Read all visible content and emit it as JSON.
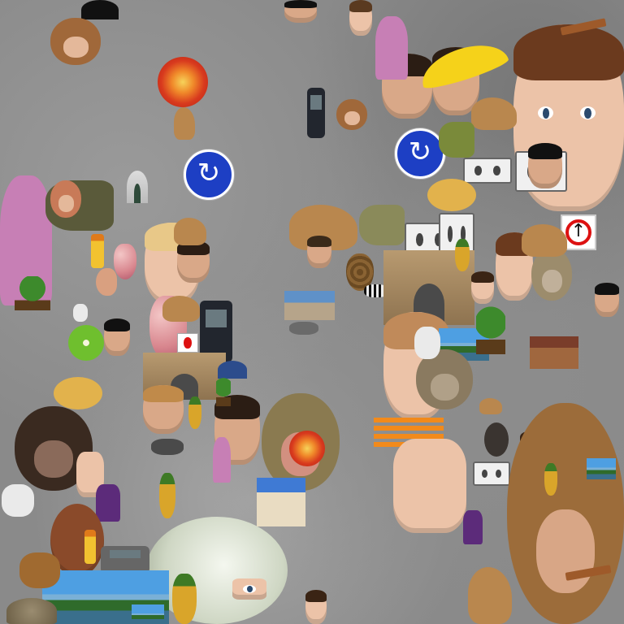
{
  "scene": {
    "description_free": true,
    "background_color": "#8a8a8a",
    "objects": [
      {
        "name": "tomato-slice",
        "kind": "fruit"
      },
      {
        "name": "banana",
        "kind": "fruit"
      },
      {
        "name": "roundabout-sign",
        "kind": "road-sign"
      },
      {
        "name": "no-entry-sign",
        "kind": "road-sign"
      },
      {
        "name": "mobile-phone",
        "kind": "device"
      },
      {
        "name": "cassette-tape",
        "kind": "device"
      },
      {
        "name": "light-bulb",
        "kind": "object"
      },
      {
        "name": "stone-arch",
        "kind": "building"
      },
      {
        "name": "macaque-face",
        "kind": "animal"
      },
      {
        "name": "woman-face",
        "kind": "person"
      }
    ]
  }
}
